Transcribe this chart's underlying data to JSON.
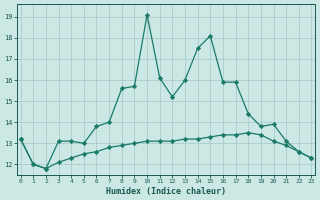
{
  "xlabel": "Humidex (Indice chaleur)",
  "x": [
    0,
    1,
    2,
    3,
    4,
    5,
    6,
    7,
    8,
    9,
    10,
    11,
    12,
    13,
    14,
    15,
    16,
    17,
    18,
    19,
    20,
    21,
    22,
    23
  ],
  "y_upper": [
    13.2,
    12.0,
    11.8,
    13.1,
    13.1,
    13.0,
    13.8,
    14.0,
    15.6,
    15.7,
    19.1,
    16.1,
    15.2,
    16.0,
    17.5,
    18.1,
    15.9,
    15.9,
    14.4,
    13.8,
    13.9,
    13.1,
    12.6,
    12.3
  ],
  "y_lower": [
    13.2,
    12.0,
    11.8,
    12.1,
    12.3,
    12.5,
    12.6,
    12.8,
    12.9,
    13.0,
    13.1,
    13.1,
    13.1,
    13.2,
    13.2,
    13.3,
    13.4,
    13.4,
    13.5,
    13.4,
    13.1,
    12.9,
    12.6,
    12.3
  ],
  "line_color": "#1a7a6a",
  "marker_color": "#1a7a6a",
  "bg_color": "#cce8e4",
  "grid_color": "#aaccca",
  "axis_label_color": "#1a5a50",
  "ylim": [
    11.5,
    19.6
  ],
  "yticks": [
    12,
    13,
    14,
    15,
    16,
    17,
    18,
    19
  ],
  "xlim": [
    -0.3,
    23.3
  ]
}
